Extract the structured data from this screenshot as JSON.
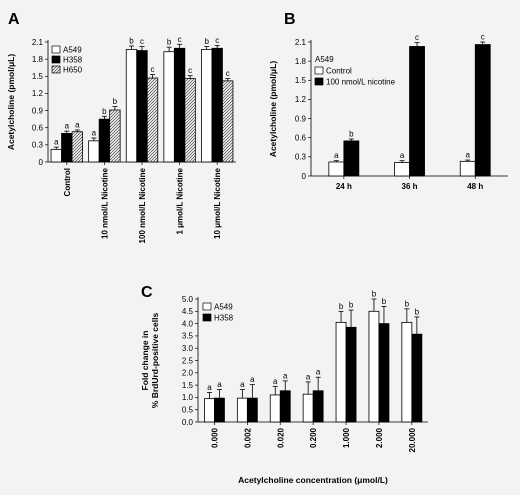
{
  "colors": {
    "white_fill": "#ffffff",
    "black_fill": "#000000",
    "hatch": "#7f7f7f",
    "background": "#f3f3f3"
  },
  "chart_data": [
    {
      "panel": "A",
      "type": "bar",
      "ylabel": "Acetylcholine (pmol/μL)",
      "ylim": [
        0,
        2.1
      ],
      "yticks": [
        "0",
        "0.3",
        "0.6",
        "0.9",
        "1.2",
        "1.5",
        "1.8",
        "2.1"
      ],
      "yticks_values": [
        0,
        0.3,
        0.6,
        0.9,
        1.2,
        1.5,
        1.8,
        2.1
      ],
      "categories": [
        "Control",
        "10 nmol/L Nicotine",
        "100 nmol/L Nicotine",
        "1 μmol/L Nicotine",
        "10 μmol/L Nicotine"
      ],
      "legend_position": "top-left",
      "series": [
        {
          "name": "A549",
          "fill": "white",
          "values": [
            0.22,
            0.37,
            1.97,
            1.93,
            1.97
          ],
          "errors": [
            0.04,
            0.05,
            0.06,
            0.08,
            0.05
          ],
          "labels": [
            "a",
            "a",
            "b",
            "b",
            "b"
          ]
        },
        {
          "name": "H358",
          "fill": "black",
          "values": [
            0.5,
            0.75,
            1.95,
            1.99,
            1.99
          ],
          "errors": [
            0.04,
            0.05,
            0.07,
            0.07,
            0.05
          ],
          "labels": [
            "a",
            "b",
            "c",
            "c",
            "c"
          ]
        },
        {
          "name": "H650",
          "fill": "hatch",
          "values": [
            0.53,
            0.91,
            1.47,
            1.46,
            1.42
          ],
          "errors": [
            0.03,
            0.06,
            0.06,
            0.05,
            0.04
          ],
          "labels": [
            "a",
            "b",
            "c",
            "c",
            "c"
          ]
        }
      ]
    },
    {
      "panel": "B",
      "type": "bar",
      "ylabel": "Acetylcholine (pmol/μL)",
      "ylim": [
        0,
        2.1
      ],
      "yticks": [
        "0",
        "0.3",
        "0.6",
        "0.9",
        "1.2",
        "1.5",
        "1.8",
        "2.1"
      ],
      "yticks_values": [
        0,
        0.3,
        0.6,
        0.9,
        1.2,
        1.5,
        1.8,
        2.1
      ],
      "categories": [
        "24 h",
        "36 h",
        "48 h"
      ],
      "legend_title": "A549",
      "legend_position": "top-left",
      "series": [
        {
          "name": "Control",
          "fill": "white",
          "values": [
            0.22,
            0.21,
            0.23
          ],
          "errors": [
            0.02,
            0.03,
            0.02
          ],
          "labels": [
            "a",
            "a",
            "a"
          ]
        },
        {
          "name": "100 nmol/L nicotine",
          "fill": "black",
          "values": [
            0.55,
            2.03,
            2.06
          ],
          "errors": [
            0.03,
            0.06,
            0.04
          ],
          "labels": [
            "b",
            "c",
            "c"
          ]
        }
      ]
    },
    {
      "panel": "C",
      "type": "bar",
      "ylabel_lines": [
        "Fold change in",
        "% BrdUrd-positive cells"
      ],
      "xlabel": "Acetylcholine concentration (μmol/L)",
      "ylim": [
        0,
        5.0
      ],
      "yticks": [
        "0.0",
        "0.5",
        "1.0",
        "1.5",
        "2.0",
        "2.5",
        "3.0",
        "3.5",
        "4.0",
        "4.5",
        "5.0"
      ],
      "yticks_values": [
        0,
        0.5,
        1.0,
        1.5,
        2.0,
        2.5,
        3.0,
        3.5,
        4.0,
        4.5,
        5.0
      ],
      "categories": [
        "0.000",
        "0.002",
        "0.020",
        "0.200",
        "1.000",
        "2.000",
        "20.000"
      ],
      "legend_position": "top-left",
      "series": [
        {
          "name": "A549",
          "fill": "white",
          "values": [
            0.95,
            0.97,
            1.1,
            1.13,
            4.05,
            4.5,
            4.05
          ],
          "errors": [
            0.25,
            0.35,
            0.35,
            0.5,
            0.45,
            0.5,
            0.55
          ],
          "labels": [
            "a",
            "a",
            "a",
            "a",
            "b",
            "b",
            "b"
          ]
        },
        {
          "name": "H358",
          "fill": "black",
          "values": [
            0.97,
            0.97,
            1.27,
            1.27,
            3.85,
            4.0,
            3.57
          ],
          "errors": [
            0.35,
            0.55,
            0.4,
            0.55,
            0.7,
            0.7,
            0.7
          ],
          "labels": [
            "a",
            "a",
            "a",
            "a",
            "b",
            "b",
            "b"
          ]
        }
      ]
    }
  ]
}
